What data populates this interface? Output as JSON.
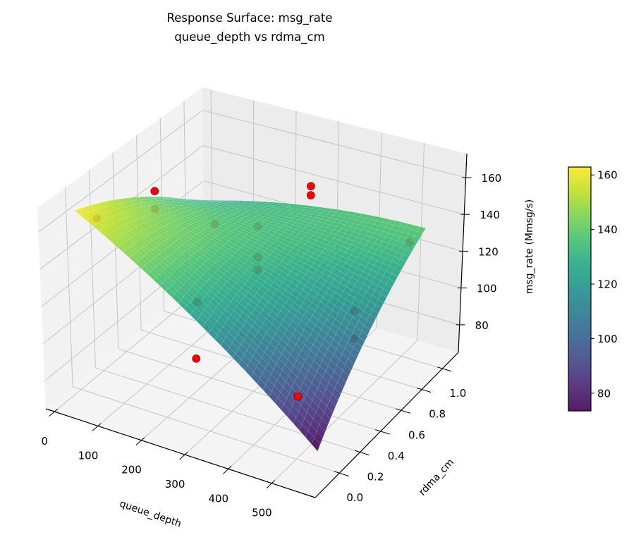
{
  "chart_data": {
    "type": "surface3d",
    "title": "Response Surface: msg_rate",
    "subtitle": "queue_depth vs rdma_cm",
    "xlabel": "queue_depth",
    "ylabel": "rdma_cm",
    "zlabel": "msg_rate (Mmsg/s)",
    "xlim": [
      -20,
      600
    ],
    "ylim": [
      -0.235,
      1.155
    ],
    "zlim": [
      65,
      173
    ],
    "x_ticks": [
      0,
      100,
      200,
      300,
      400,
      500
    ],
    "x_tick_labels": [
      "0",
      "100",
      "200",
      "300",
      "400",
      "500"
    ],
    "y_ticks": [
      0,
      0.2,
      0.4,
      0.6,
      0.8,
      1.0
    ],
    "y_tick_labels": [
      "0.0",
      "0.2",
      "0.4",
      "0.6",
      "0.8",
      "1.0"
    ],
    "z_ticks": [
      80,
      100,
      120,
      140,
      160
    ],
    "z_tick_labels": [
      "80",
      "100",
      "120",
      "140",
      "160"
    ],
    "grid": true,
    "colormap": "viridis",
    "surface": {
      "x": [
        0,
        55,
        110,
        165,
        220,
        275,
        330,
        385,
        440,
        495,
        550
      ],
      "y": [
        0,
        0.1,
        0.2,
        0.3,
        0.4,
        0.5,
        0.6,
        0.7,
        0.8,
        0.9,
        1.0
      ],
      "z": [
        [
          162.0,
          154.9,
          147.4,
          139.5,
          131.2,
          122.5,
          113.4,
          103.9,
          94.0,
          83.7,
          73.0
        ],
        [
          159.4,
          153.4,
          147.0,
          140.2,
          133.0,
          125.4,
          117.3,
          108.9,
          100.1,
          90.9,
          81.3
        ],
        [
          156.4,
          151.5,
          146.2,
          140.4,
          134.3,
          127.8,
          120.9,
          113.6,
          105.8,
          97.7,
          89.2
        ],
        [
          153.0,
          149.2,
          144.9,
          140.3,
          135.3,
          129.9,
          124.0,
          117.8,
          111.2,
          104.1,
          96.7
        ],
        [
          149.2,
          146.5,
          143.3,
          139.8,
          135.8,
          131.5,
          126.8,
          121.6,
          116.1,
          110.1,
          103.8
        ],
        [
          145.0,
          143.4,
          141.3,
          138.9,
          136.0,
          132.8,
          129.1,
          125.1,
          120.6,
          115.8,
          110.5
        ],
        [
          140.4,
          139.8,
          138.9,
          137.5,
          135.8,
          133.6,
          131.0,
          128.1,
          124.7,
          121.0,
          116.8
        ],
        [
          135.4,
          135.9,
          136.1,
          135.8,
          135.1,
          134.1,
          132.6,
          130.7,
          128.4,
          125.8,
          122.7
        ],
        [
          130.0,
          131.6,
          132.8,
          133.7,
          134.1,
          134.1,
          133.7,
          132.9,
          131.8,
          130.2,
          128.2
        ],
        [
          124.2,
          126.9,
          129.2,
          131.1,
          132.6,
          133.8,
          134.5,
          134.8,
          134.7,
          134.2,
          133.3
        ],
        [
          118.0,
          121.8,
          125.2,
          128.2,
          130.8,
          133.0,
          134.8,
          136.2,
          137.2,
          137.8,
          138.0
        ]
      ]
    },
    "points": [
      {
        "x": 0,
        "y": 0.18,
        "z": 149
      },
      {
        "x": 160,
        "y": 0.6,
        "z": 136
      },
      {
        "x": 185,
        "y": 0.88,
        "z": 122
      },
      {
        "x": 185,
        "y": 0.88,
        "z": 105
      },
      {
        "x": 185,
        "y": 0.88,
        "z": 98
      },
      {
        "x": 230,
        "y": 0.18,
        "z": 120
      },
      {
        "x": 488,
        "y": 0.6,
        "z": 111
      },
      {
        "x": 488,
        "y": 0.6,
        "z": 96
      },
      {
        "x": 513,
        "y": 1.0,
        "z": 128
      },
      {
        "x": 0,
        "y": 0.67,
        "z": 130
      },
      {
        "x": 0,
        "y": 0.67,
        "z": 140
      },
      {
        "x": 278,
        "y": 1.0,
        "z": 144
      },
      {
        "x": 278,
        "y": 1.0,
        "z": 139
      },
      {
        "x": 272,
        "y": 0.0,
        "z": 102
      },
      {
        "x": 507,
        "y": 0.0,
        "z": 99
      }
    ],
    "point_color": "#ff0000",
    "colorbar": {
      "vmin": 73.5,
      "vmax": 162.9,
      "ticks": [
        80,
        100,
        120,
        140,
        160
      ],
      "tick_labels": [
        "80",
        "100",
        "120",
        "140",
        "160"
      ]
    }
  }
}
